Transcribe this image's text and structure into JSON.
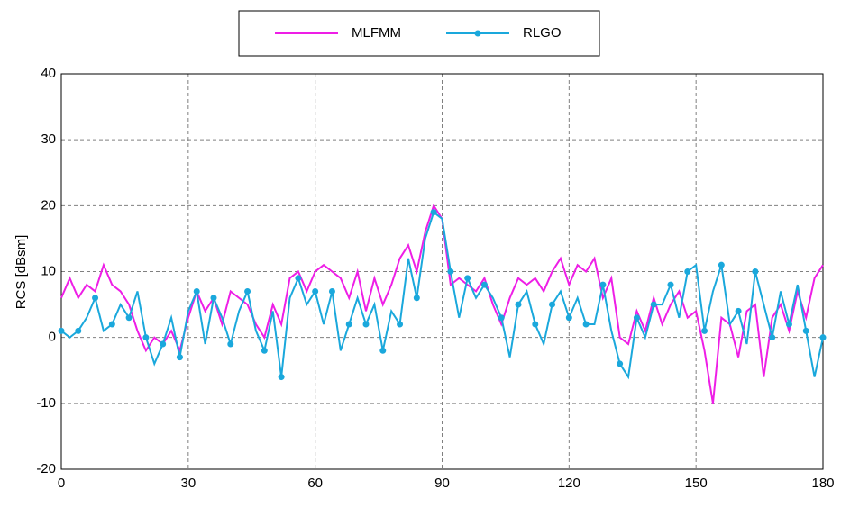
{
  "chart_data": {
    "type": "line",
    "y_label": "RCS [dBsm]",
    "x": [
      0,
      2,
      4,
      6,
      8,
      10,
      12,
      14,
      16,
      18,
      20,
      22,
      24,
      26,
      28,
      30,
      32,
      34,
      36,
      38,
      40,
      42,
      44,
      46,
      48,
      50,
      52,
      54,
      56,
      58,
      60,
      62,
      64,
      66,
      68,
      70,
      72,
      74,
      76,
      78,
      80,
      82,
      84,
      86,
      88,
      90,
      92,
      94,
      96,
      98,
      100,
      102,
      104,
      106,
      108,
      110,
      112,
      114,
      116,
      118,
      120,
      122,
      124,
      126,
      128,
      130,
      132,
      134,
      136,
      138,
      140,
      142,
      144,
      146,
      148,
      150,
      152,
      154,
      156,
      158,
      160,
      162,
      164,
      166,
      168,
      170,
      172,
      174,
      176,
      178,
      180
    ],
    "series": [
      {
        "name": "MLFMM",
        "color": "#ee1ee6",
        "marker": "none",
        "values": [
          6,
          9,
          6,
          8,
          7,
          11,
          8,
          7,
          5,
          1,
          -2,
          0,
          -1,
          1,
          -2,
          3,
          7,
          4,
          6,
          2,
          7,
          6,
          5,
          2,
          0,
          5,
          2,
          9,
          10,
          7,
          10,
          11,
          10,
          9,
          6,
          10,
          4,
          9,
          5,
          8,
          12,
          14,
          10,
          16,
          20,
          18,
          8,
          9,
          8,
          7,
          9,
          5,
          2,
          6,
          9,
          8,
          9,
          7,
          10,
          12,
          8,
          11,
          10,
          12,
          6,
          9,
          0,
          -1,
          4,
          1,
          6,
          2,
          5,
          7,
          3,
          4,
          -2,
          -10,
          3,
          2,
          -3,
          4,
          5,
          -6,
          3,
          5,
          1,
          7,
          3,
          9,
          11
        ]
      },
      {
        "name": "RLGO",
        "color": "#1aa8dc",
        "marker": "circle",
        "values": [
          1,
          0,
          1,
          3,
          6,
          1,
          2,
          5,
          3,
          7,
          0,
          -4,
          -1,
          3,
          -3,
          4,
          7,
          -1,
          6,
          3,
          -1,
          4,
          7,
          1,
          -2,
          4,
          -6,
          6,
          9,
          5,
          7,
          2,
          7,
          -2,
          2,
          6,
          2,
          5,
          -2,
          4,
          2,
          12,
          6,
          15,
          19,
          18,
          10,
          3,
          9,
          6,
          8,
          6,
          3,
          -3,
          5,
          7,
          2,
          -1,
          5,
          7,
          3,
          6,
          2,
          2,
          8,
          1,
          -4,
          -6,
          3,
          0,
          5,
          5,
          8,
          3,
          10,
          11,
          1,
          7,
          11,
          2,
          4,
          -1,
          10,
          5,
          0,
          7,
          2,
          8,
          1,
          -6,
          0
        ]
      }
    ],
    "xlim": [
      0,
      180
    ],
    "xticks": [
      0,
      30,
      60,
      90,
      120,
      150,
      180
    ],
    "ylim": [
      -20,
      40
    ],
    "yticks": [
      -20,
      -10,
      0,
      10,
      20,
      30,
      40
    ],
    "grid": true,
    "legend": "top"
  }
}
